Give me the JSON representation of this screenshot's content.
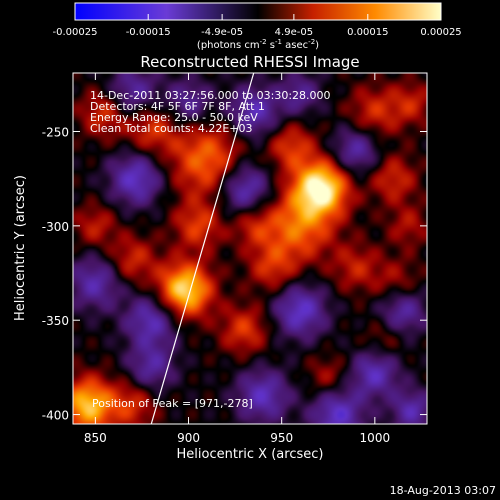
{
  "colorbar": {
    "tick_labels": [
      "-0.00025",
      "-0.00015",
      "-4.9e-05",
      "4.9e-05",
      "0.00015",
      "0.00025"
    ],
    "tick_values": [
      -0.00025,
      -0.00015,
      -4.9e-05,
      4.9e-05,
      0.00015,
      0.00025
    ],
    "range": [
      -0.00025,
      0.00025
    ],
    "units_prefix": "(photons cm",
    "units_exp1": "-2",
    "units_mid": " s",
    "units_exp2": "-1",
    "units_mid2": " asec",
    "units_exp3": "-2",
    "units_suffix": ")"
  },
  "chart_data": {
    "type": "heatmap",
    "title": "Reconstructed RHESSI Image",
    "xlabel": "Heliocentric X (arcsec)",
    "ylabel": "Heliocentric Y (arcsec)",
    "xlim": [
      838,
      1028
    ],
    "ylim": [
      -405,
      -219
    ],
    "x_ticks": [
      850,
      900,
      950,
      1000
    ],
    "x_tick_labels": [
      "850",
      "900",
      "950",
      "1000"
    ],
    "y_ticks": [
      -400,
      -350,
      -300,
      -250
    ],
    "y_tick_labels": [
      "-400",
      "-350",
      "-300",
      "-250"
    ],
    "annotations": [
      "14-Dec-2011 03:27:56.000 to 03:30:28.000",
      "Detectors: 4F 5F 6F 7F 8F, Att 1",
      "Energy Range: 25.0 - 50.0 keV",
      "Clean    Total counts: 4.22E+03"
    ],
    "peak_text": "Position of Peak = [971,-278]",
    "peak": [
      971,
      -278
    ],
    "limb_line": [
      [
        935,
        -219
      ],
      [
        880,
        -405
      ]
    ],
    "blobs": [
      {
        "x": 971,
        "y": -280,
        "amp": 1.0,
        "s": 10
      },
      {
        "x": 959,
        "y": -300,
        "amp": 0.55,
        "s": 13
      },
      {
        "x": 955,
        "y": -258,
        "amp": 0.4,
        "s": 9
      },
      {
        "x": 1000,
        "y": -240,
        "amp": 0.35,
        "s": 10
      },
      {
        "x": 1010,
        "y": -275,
        "amp": 0.35,
        "s": 9
      },
      {
        "x": 1020,
        "y": -235,
        "amp": 0.3,
        "s": 8
      },
      {
        "x": 1012,
        "y": -330,
        "amp": 0.25,
        "s": 9
      },
      {
        "x": 1005,
        "y": -360,
        "amp": 0.2,
        "s": 8
      },
      {
        "x": 898,
        "y": -334,
        "amp": 0.9,
        "s": 10
      },
      {
        "x": 910,
        "y": -265,
        "amp": 0.55,
        "s": 14
      },
      {
        "x": 905,
        "y": -300,
        "amp": 0.4,
        "s": 9
      },
      {
        "x": 880,
        "y": -248,
        "amp": 0.4,
        "s": 10
      },
      {
        "x": 855,
        "y": -240,
        "amp": 0.4,
        "s": 9
      },
      {
        "x": 870,
        "y": -318,
        "amp": 0.35,
        "s": 9
      },
      {
        "x": 850,
        "y": -300,
        "amp": 0.3,
        "s": 8
      },
      {
        "x": 846,
        "y": -395,
        "amp": 0.8,
        "s": 10
      },
      {
        "x": 870,
        "y": -395,
        "amp": 0.35,
        "s": 9
      },
      {
        "x": 930,
        "y": -355,
        "amp": 0.4,
        "s": 9
      },
      {
        "x": 945,
        "y": -322,
        "amp": 0.35,
        "s": 9
      },
      {
        "x": 935,
        "y": -300,
        "amp": 0.3,
        "s": 8
      },
      {
        "x": 990,
        "y": -322,
        "amp": 0.3,
        "s": 9
      },
      {
        "x": 975,
        "y": -380,
        "amp": 0.25,
        "s": 8
      },
      {
        "x": 1018,
        "y": -300,
        "amp": 0.25,
        "s": 8
      },
      {
        "x": 870,
        "y": -230,
        "amp": -0.45,
        "s": 10
      },
      {
        "x": 900,
        "y": -235,
        "amp": -0.4,
        "s": 9
      },
      {
        "x": 935,
        "y": -240,
        "amp": -0.5,
        "s": 10
      },
      {
        "x": 872,
        "y": -275,
        "amp": -0.55,
        "s": 10
      },
      {
        "x": 930,
        "y": -280,
        "amp": -0.55,
        "s": 10
      },
      {
        "x": 990,
        "y": -260,
        "amp": -0.45,
        "s": 9
      },
      {
        "x": 850,
        "y": -330,
        "amp": -0.45,
        "s": 10
      },
      {
        "x": 880,
        "y": -350,
        "amp": -0.5,
        "s": 10
      },
      {
        "x": 960,
        "y": -345,
        "amp": -0.55,
        "s": 10
      },
      {
        "x": 1015,
        "y": -345,
        "amp": -0.45,
        "s": 9
      },
      {
        "x": 880,
        "y": -375,
        "amp": -0.4,
        "s": 9
      },
      {
        "x": 940,
        "y": -390,
        "amp": -0.5,
        "s": 10
      },
      {
        "x": 980,
        "y": -400,
        "amp": -0.55,
        "s": 10
      },
      {
        "x": 1000,
        "y": -378,
        "amp": -0.5,
        "s": 9
      },
      {
        "x": 1020,
        "y": -398,
        "amp": -0.45,
        "s": 8
      },
      {
        "x": 960,
        "y": -230,
        "amp": -0.35,
        "s": 8
      }
    ]
  },
  "footer": {
    "date": "18-Aug-2013 03:07"
  }
}
